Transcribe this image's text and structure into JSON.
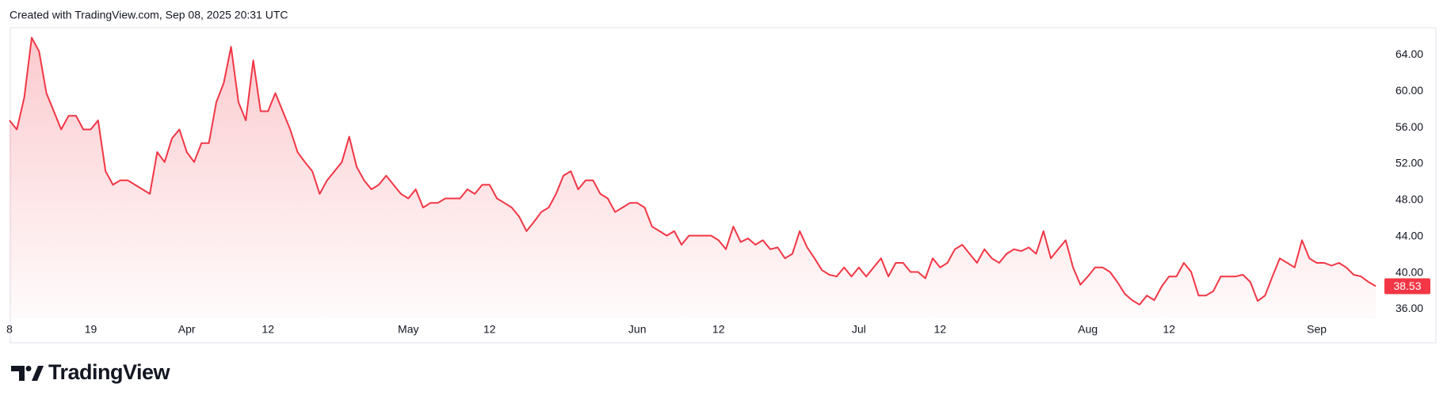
{
  "header": "Created with TradingView.com, Sep 08, 2025 20:31 UTC",
  "brand": "TradingView",
  "chart_data": {
    "type": "area",
    "color": "#f23645",
    "categories": [
      "8",
      null,
      null,
      null,
      null,
      null,
      null,
      null,
      null,
      null,
      null,
      "19",
      null,
      null,
      null,
      null,
      null,
      null,
      null,
      null,
      null,
      null,
      null,
      null,
      "Apr",
      null,
      null,
      null,
      null,
      null,
      null,
      null,
      null,
      null,
      null,
      "12",
      null,
      null,
      null,
      null,
      null,
      null,
      null,
      null,
      null,
      null,
      null,
      null,
      null,
      null,
      null,
      null,
      null,
      null,
      "May",
      null,
      null,
      null,
      null,
      null,
      null,
      null,
      null,
      null,
      null,
      "12",
      null,
      null,
      null,
      null,
      null,
      null,
      null,
      null,
      null,
      null,
      null,
      null,
      null,
      null,
      null,
      null,
      null,
      null,
      null,
      "Jun",
      null,
      null,
      null,
      null,
      null,
      null,
      null,
      null,
      null,
      null,
      "12",
      null,
      null,
      null,
      null,
      null,
      null,
      null,
      null,
      null,
      null,
      null,
      null,
      null,
      null,
      null,
      null,
      null,
      null,
      "Jul",
      null,
      null,
      null,
      null,
      null,
      null,
      null,
      null,
      null,
      null,
      "12",
      null,
      null,
      null,
      null,
      null,
      null,
      null,
      null,
      null,
      null,
      null,
      null,
      null,
      null,
      null,
      null,
      null,
      null,
      null,
      "Aug",
      null,
      null,
      null,
      null,
      null,
      null,
      null,
      null,
      null,
      null,
      "12",
      null,
      null,
      null,
      null,
      null,
      null,
      null,
      null,
      null,
      null,
      null,
      null,
      null,
      null,
      null,
      null,
      null,
      null,
      null,
      "Sep",
      null,
      null,
      null,
      null,
      null,
      null,
      null,
      null
    ],
    "values": [
      56.8,
      55.8,
      59.3,
      65.9,
      64.4,
      59.8,
      57.8,
      55.8,
      57.3,
      57.3,
      55.8,
      55.8,
      56.8,
      51.2,
      49.7,
      50.2,
      50.2,
      49.7,
      49.2,
      48.7,
      53.3,
      52.2,
      54.8,
      55.8,
      53.3,
      52.2,
      54.3,
      54.3,
      58.8,
      60.9,
      64.9,
      58.8,
      56.8,
      63.4,
      57.8,
      57.8,
      59.8,
      57.8,
      55.8,
      53.3,
      52.2,
      51.2,
      48.7,
      50.2,
      51.2,
      52.2,
      55.0,
      51.7,
      50.2,
      49.2,
      49.7,
      50.7,
      49.7,
      48.7,
      48.2,
      49.2,
      47.2,
      47.7,
      47.7,
      48.2,
      48.2,
      48.2,
      49.2,
      48.7,
      49.7,
      49.7,
      48.2,
      47.7,
      47.2,
      46.2,
      44.6,
      45.6,
      46.7,
      47.2,
      48.7,
      50.7,
      51.2,
      49.2,
      50.2,
      50.2,
      48.7,
      48.2,
      46.7,
      47.2,
      47.7,
      47.7,
      47.2,
      45.1,
      44.6,
      44.1,
      44.6,
      43.1,
      44.1,
      44.1,
      44.1,
      44.1,
      43.6,
      42.6,
      45.1,
      43.4,
      43.8,
      43.1,
      43.6,
      42.6,
      42.8,
      41.6,
      42.1,
      44.6,
      42.8,
      41.6,
      40.3,
      39.8,
      39.6,
      40.6,
      39.6,
      40.6,
      39.6,
      40.6,
      41.6,
      39.6,
      41.1,
      41.1,
      40.1,
      40.1,
      39.4,
      41.6,
      40.6,
      41.1,
      42.6,
      43.1,
      42.1,
      41.1,
      42.6,
      41.6,
      41.1,
      42.1,
      42.6,
      42.4,
      42.8,
      42.1,
      44.6,
      41.6,
      42.6,
      43.6,
      40.6,
      38.7,
      39.6,
      40.6,
      40.6,
      40.1,
      39.0,
      37.7,
      37.0,
      36.5,
      37.5,
      37.0,
      38.5,
      39.6,
      39.6,
      41.1,
      40.1,
      37.5,
      37.5,
      38.0,
      39.6,
      39.6,
      39.6,
      39.8,
      39.0,
      36.9,
      37.5,
      39.6,
      41.6,
      41.1,
      40.6,
      43.6,
      41.6,
      41.1,
      41.1,
      40.8,
      41.1,
      40.6,
      39.8,
      39.6,
      39.0,
      38.53
    ],
    "last_price_label": "38.53",
    "ylim": [
      35,
      67
    ],
    "yticks": [
      {
        "value": 36,
        "label": "36.00"
      },
      {
        "value": 40,
        "label": "40.00"
      },
      {
        "value": 44,
        "label": "44.00"
      },
      {
        "value": 48,
        "label": "48.00"
      },
      {
        "value": 52,
        "label": "52.00"
      },
      {
        "value": 56,
        "label": "56.00"
      },
      {
        "value": 60,
        "label": "60.00"
      },
      {
        "value": 64,
        "label": "64.00"
      }
    ]
  }
}
